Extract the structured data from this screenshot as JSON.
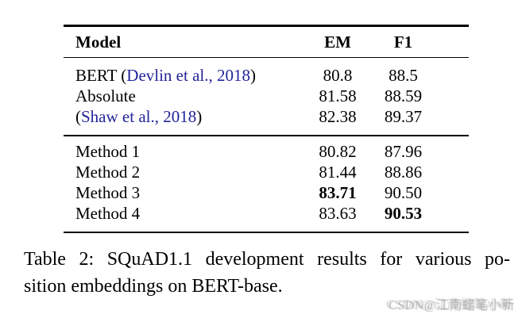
{
  "table": {
    "header": {
      "model": "Model",
      "em": "EM",
      "f1": "F1"
    },
    "group1": [
      {
        "pre": "BERT (",
        "cite": "Devlin et al., 2018",
        "post": ")",
        "em": "80.8",
        "f1": "88.5"
      },
      {
        "pre": "Absolute",
        "cite": "",
        "post": "",
        "em": "81.58",
        "f1": "88.59"
      },
      {
        "pre": "(",
        "cite": "Shaw et al., 2018",
        "post": ")",
        "em": "82.38",
        "f1": "89.37"
      }
    ],
    "group2": [
      {
        "label": "Method 1",
        "em": "80.82",
        "f1": "87.96"
      },
      {
        "label": "Method 2",
        "em": "81.44",
        "f1": "88.86"
      },
      {
        "label": "Method 3",
        "em": "83.71",
        "f1": "90.50"
      },
      {
        "label": "Method 4",
        "em": "83.63",
        "f1": "90.53"
      }
    ]
  },
  "caption": {
    "line1": "Table 2: SQuAD1.1 development results for various po-",
    "line2": "sition embeddings on BERT-base."
  },
  "watermark": {
    "text": "CSDN@江南蜡笔小新"
  },
  "colors": {
    "citation_blue": "#23239b",
    "text_black": "#000000",
    "watermark_gray": "#ababab",
    "background": "#ffffff"
  }
}
